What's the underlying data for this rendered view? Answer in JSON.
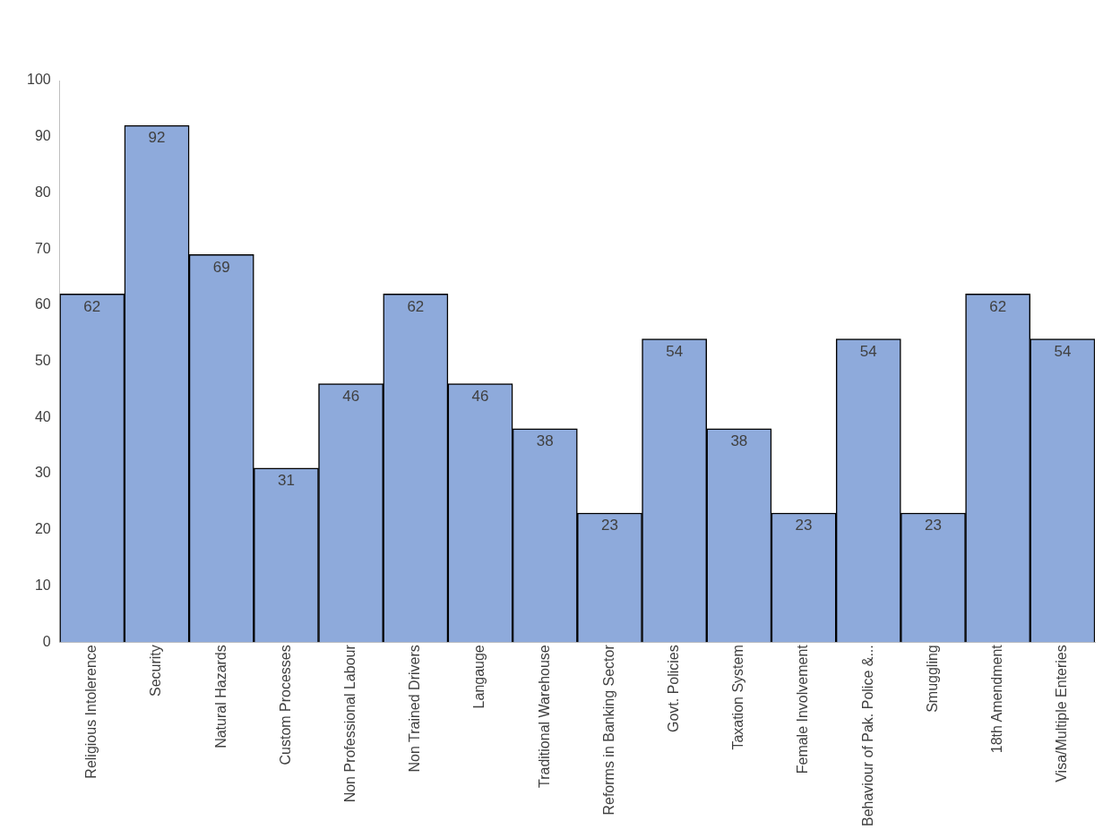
{
  "chart_data": {
    "type": "bar",
    "categories": [
      "Religious Intolerence",
      "Security",
      "Natural Hazards",
      "Custom Processes",
      "Non Professional Labour",
      "Non Trained Drivers",
      "Langauge",
      "Traditional Warehouse",
      "Reforms in Banking Sector",
      "Govt. Policies",
      "Taxation System",
      "Female Involvement",
      "Behaviour of Pak. Police &...",
      "Smuggling",
      "18th Amendment",
      "Visa/Multiple Enteries"
    ],
    "values": [
      62,
      92,
      69,
      31,
      46,
      62,
      46,
      38,
      23,
      54,
      38,
      23,
      54,
      23,
      62,
      54
    ],
    "color": "#8eaadb",
    "ylim": [
      0,
      100
    ],
    "yticks": [
      0,
      10,
      20,
      30,
      40,
      50,
      60,
      70,
      80,
      90,
      100
    ],
    "grid": false,
    "legend": false,
    "data_labels": true
  }
}
